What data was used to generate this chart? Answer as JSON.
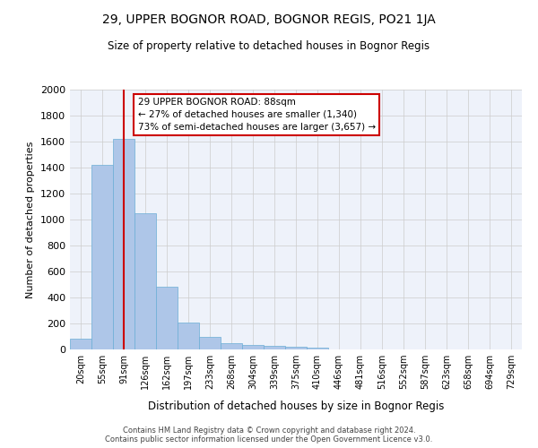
{
  "title": "29, UPPER BOGNOR ROAD, BOGNOR REGIS, PO21 1JA",
  "subtitle": "Size of property relative to detached houses in Bognor Regis",
  "xlabel": "Distribution of detached houses by size in Bognor Regis",
  "ylabel": "Number of detached properties",
  "bar_color": "#aec6e8",
  "bar_edge_color": "#6baed6",
  "marker_line_color": "#cc0000",
  "annotation_text": "29 UPPER BOGNOR ROAD: 88sqm\n← 27% of detached houses are smaller (1,340)\n73% of semi-detached houses are larger (3,657) →",
  "annotation_box_color": "#cc0000",
  "categories": [
    "20sqm",
    "55sqm",
    "91sqm",
    "126sqm",
    "162sqm",
    "197sqm",
    "233sqm",
    "268sqm",
    "304sqm",
    "339sqm",
    "375sqm",
    "410sqm",
    "446sqm",
    "481sqm",
    "516sqm",
    "552sqm",
    "587sqm",
    "623sqm",
    "658sqm",
    "694sqm",
    "729sqm"
  ],
  "values": [
    80,
    1420,
    1620,
    1050,
    480,
    205,
    100,
    50,
    35,
    25,
    20,
    15,
    0,
    0,
    0,
    0,
    0,
    0,
    0,
    0,
    0
  ],
  "ylim": [
    0,
    2000
  ],
  "yticks": [
    0,
    200,
    400,
    600,
    800,
    1000,
    1200,
    1400,
    1600,
    1800,
    2000
  ],
  "grid_color": "#cccccc",
  "background_color": "#eef2fa",
  "footer_line1": "Contains HM Land Registry data © Crown copyright and database right 2024.",
  "footer_line2": "Contains public sector information licensed under the Open Government Licence v3.0.",
  "marker_bar_index": 2
}
